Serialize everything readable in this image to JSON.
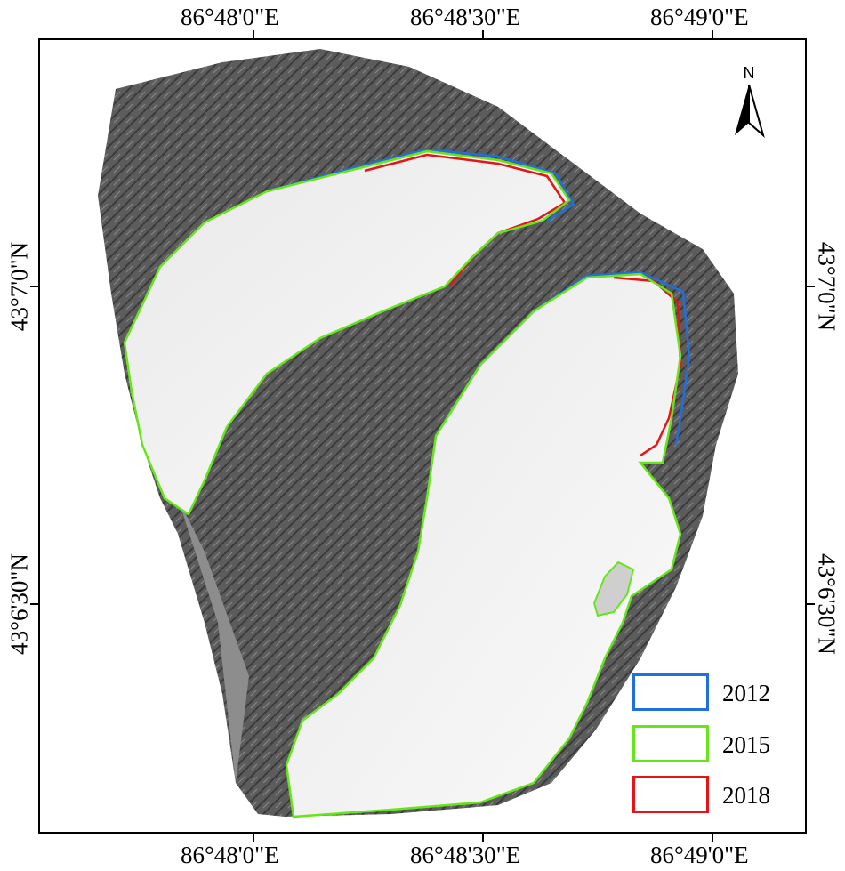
{
  "grid": {
    "lon_labels": [
      "86°48'0\"E",
      "86°48'30\"E",
      "86°49'0\"E"
    ],
    "lat_labels": [
      "43°7'0\"N",
      "43°6'30\"N"
    ]
  },
  "north_arrow": {
    "label": "N",
    "icon": "north-arrow-icon"
  },
  "legend": [
    {
      "label": "2012",
      "color": "#1f6fe0"
    },
    {
      "label": "2015",
      "color": "#66e61a"
    },
    {
      "label": "2018",
      "color": "#e61414"
    }
  ],
  "colors": {
    "frame": "#000000",
    "terrain_dark": "#4a4a4a",
    "terrain_mid": "#7a7a7a",
    "glacier": "#f2f2f2"
  }
}
